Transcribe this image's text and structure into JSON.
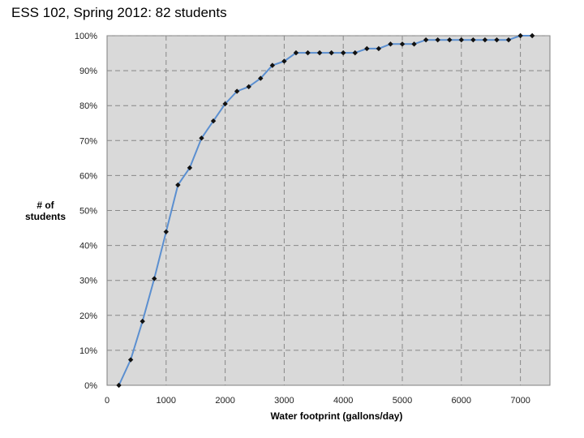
{
  "title": "ESS 102, Spring 2012: 82 students",
  "chart_data": {
    "type": "line",
    "title": "ESS 102, Spring 2012: 82 students",
    "xlabel": "Water footprint (gallons/day)",
    "ylabel_lines": [
      "# of",
      "students"
    ],
    "xlim": [
      0,
      7500
    ],
    "ylim": [
      0,
      100
    ],
    "x_ticks": [
      0,
      1000,
      2000,
      3000,
      4000,
      5000,
      6000,
      7000
    ],
    "y_ticks": [
      0,
      10,
      20,
      30,
      40,
      50,
      60,
      70,
      80,
      90,
      100
    ],
    "y_tick_labels": [
      "0%",
      "10%",
      "20%",
      "30%",
      "40%",
      "50%",
      "60%",
      "70%",
      "80%",
      "90%",
      "100%"
    ],
    "x_tick_labels": [
      "0",
      "1000",
      "2000",
      "3000",
      "4000",
      "5000",
      "6000",
      "7000"
    ],
    "grid": true,
    "colors": {
      "line": "#5b8fd0",
      "marker": "#111111",
      "plot_bg": "#d9d9d9",
      "grid": "#888888"
    },
    "series": [
      {
        "x": [
          200,
          400,
          600,
          800,
          1000,
          1200,
          1400,
          1600,
          1800,
          2000,
          2200,
          2400,
          2600,
          2800,
          3000,
          3200,
          3400,
          3600,
          3800,
          4000,
          4200,
          4400,
          4600,
          4800,
          5000,
          5200,
          5400,
          5600,
          5800,
          6000,
          6200,
          6400,
          6600,
          6800,
          7000,
          7200
        ],
        "y": [
          0,
          7.3,
          18.3,
          30.5,
          43.9,
          57.3,
          62.2,
          70.7,
          75.6,
          80.5,
          84.1,
          85.4,
          87.8,
          91.5,
          92.7,
          95.1,
          95.1,
          95.1,
          95.1,
          95.1,
          95.1,
          96.3,
          96.3,
          97.6,
          97.6,
          97.6,
          98.8,
          98.8,
          98.8,
          98.8,
          98.8,
          98.8,
          98.8,
          98.8,
          100,
          100
        ]
      }
    ]
  }
}
